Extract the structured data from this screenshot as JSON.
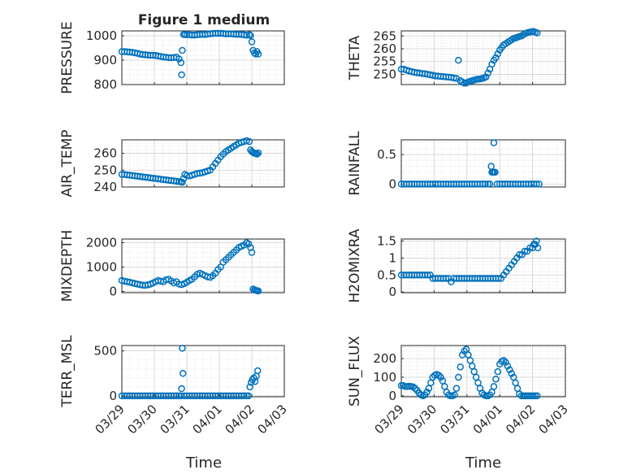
{
  "figure": {
    "title": "Figure 1 medium",
    "xlabel": "Time"
  },
  "chart_data": [
    {
      "type": "scatter",
      "ylabel": "PRESSURE",
      "ylim": [
        800,
        1020
      ],
      "yticks": [
        800,
        900,
        1000
      ],
      "xlim": [
        0,
        5
      ],
      "xticks": [
        "03/29",
        "03/30",
        "03/31",
        "04/01",
        "04/02",
        "04/03"
      ],
      "grid": true,
      "marker": "circle",
      "color": "#0072bd",
      "x": [
        0.0,
        0.08,
        0.16,
        0.24,
        0.32,
        0.4,
        0.48,
        0.56,
        0.64,
        0.72,
        0.8,
        0.88,
        0.96,
        1.04,
        1.12,
        1.2,
        1.28,
        1.36,
        1.44,
        1.52,
        1.6,
        1.68,
        1.76,
        1.82,
        1.84,
        1.86,
        1.9,
        1.94,
        2.0,
        2.08,
        2.16,
        2.24,
        2.32,
        2.4,
        2.48,
        2.56,
        2.64,
        2.72,
        2.8,
        2.88,
        2.96,
        3.04,
        3.12,
        3.2,
        3.28,
        3.36,
        3.44,
        3.52,
        3.6,
        3.68,
        3.76,
        3.84,
        3.92,
        3.96,
        4.0,
        4.04,
        4.08,
        4.12,
        4.16,
        4.2
      ],
      "y": [
        935,
        935,
        934,
        933,
        932,
        930,
        928,
        925,
        923,
        922,
        921,
        920,
        920,
        919,
        917,
        915,
        913,
        912,
        910,
        910,
        911,
        912,
        905,
        890,
        840,
        940,
        1005,
        1005,
        1004,
        1004,
        1003,
        1003,
        1004,
        1005,
        1006,
        1005,
        1007,
        1008,
        1009,
        1010,
        1010,
        1010,
        1009,
        1008,
        1008,
        1008,
        1007,
        1006,
        1006,
        1005,
        1004,
        1002,
        1005,
        1001,
        975,
        940,
        930,
        925,
        935,
        925
      ]
    },
    {
      "type": "scatter",
      "ylabel": "THETA",
      "ylim": [
        246,
        267
      ],
      "yticks": [
        250,
        255,
        260,
        265
      ],
      "xlim": [
        0,
        5
      ],
      "xticks": [
        "03/29",
        "03/30",
        "03/31",
        "04/01",
        "04/02",
        "04/03"
      ],
      "grid": true,
      "marker": "circle",
      "color": "#0072bd",
      "x": [
        0.0,
        0.08,
        0.16,
        0.24,
        0.32,
        0.4,
        0.48,
        0.56,
        0.64,
        0.72,
        0.8,
        0.88,
        0.96,
        1.04,
        1.12,
        1.2,
        1.28,
        1.36,
        1.44,
        1.52,
        1.6,
        1.68,
        1.74,
        1.8,
        1.86,
        1.92,
        1.98,
        2.04,
        2.1,
        2.16,
        2.22,
        2.28,
        2.34,
        2.4,
        2.46,
        2.52,
        2.58,
        2.64,
        2.7,
        2.76,
        2.82,
        2.88,
        2.94,
        3.0,
        3.06,
        3.12,
        3.18,
        3.24,
        3.3,
        3.36,
        3.42,
        3.48,
        3.54,
        3.6,
        3.66,
        3.72,
        3.78,
        3.84,
        3.9,
        3.96,
        4.02,
        4.08,
        4.14
      ],
      "y": [
        252,
        252,
        251.6,
        251.3,
        251,
        250.8,
        250.6,
        250.5,
        250.3,
        250.2,
        250,
        249.8,
        249.6,
        249.4,
        249.3,
        249.2,
        249.1,
        249,
        248.9,
        248.8,
        248.6,
        248.4,
        255.5,
        247.5,
        247,
        246.5,
        246.6,
        247,
        247.3,
        247.5,
        247.7,
        248,
        248.1,
        248.2,
        248.4,
        248.6,
        249,
        250.5,
        252,
        254,
        255.5,
        256.5,
        258,
        259.5,
        260.5,
        261.5,
        262,
        262.5,
        263,
        263.5,
        264,
        264.2,
        264.5,
        264.8,
        265,
        265.5,
        266,
        266.3,
        266.5,
        266.6,
        266.8,
        266.5,
        266.2
      ]
    },
    {
      "type": "scatter",
      "ylabel": "AIR_TEMP",
      "ylim": [
        240,
        268
      ],
      "yticks": [
        240,
        250,
        260
      ],
      "xlim": [
        0,
        5
      ],
      "xticks": [
        "03/29",
        "03/30",
        "03/31",
        "04/01",
        "04/02",
        "04/03"
      ],
      "grid": true,
      "marker": "circle",
      "color": "#0072bd",
      "x": [
        0.0,
        0.08,
        0.16,
        0.24,
        0.32,
        0.4,
        0.48,
        0.56,
        0.64,
        0.72,
        0.8,
        0.88,
        0.96,
        1.04,
        1.12,
        1.2,
        1.28,
        1.36,
        1.44,
        1.52,
        1.6,
        1.68,
        1.76,
        1.82,
        1.86,
        1.9,
        1.94,
        2.0,
        2.08,
        2.16,
        2.24,
        2.32,
        2.4,
        2.48,
        2.56,
        2.64,
        2.72,
        2.8,
        2.88,
        2.96,
        3.04,
        3.12,
        3.2,
        3.28,
        3.36,
        3.44,
        3.52,
        3.6,
        3.68,
        3.76,
        3.84,
        3.92,
        3.96,
        4.0,
        4.04,
        4.08,
        4.12,
        4.16,
        4.2
      ],
      "y": [
        247.5,
        247.4,
        247.2,
        247,
        246.8,
        246.6,
        246.4,
        246.2,
        246,
        245.8,
        245.6,
        245.4,
        245.2,
        245,
        244.8,
        244.6,
        244.4,
        244.2,
        244,
        243.8,
        243.6,
        243.4,
        243.2,
        243,
        242.8,
        245,
        247.5,
        246.8,
        246.5,
        247,
        247.5,
        248,
        248.2,
        248.5,
        249,
        249.5,
        250,
        252,
        254,
        256,
        258,
        259.5,
        261,
        262,
        263,
        264,
        265,
        266,
        266.5,
        267,
        267.5,
        267,
        262,
        261,
        260.5,
        260,
        260,
        259.5,
        260.2
      ]
    },
    {
      "type": "scatter",
      "ylabel": "RAINFALL",
      "ylim": [
        -0.05,
        0.75
      ],
      "yticks": [
        0,
        0.5
      ],
      "xlim": [
        0,
        5
      ],
      "xticks": [
        "03/29",
        "03/30",
        "03/31",
        "04/01",
        "04/02",
        "04/03"
      ],
      "grid": true,
      "marker": "circle",
      "color": "#0072bd",
      "x": [
        0.0,
        0.08,
        0.16,
        0.24,
        0.32,
        0.4,
        0.48,
        0.56,
        0.64,
        0.72,
        0.8,
        0.88,
        0.96,
        1.04,
        1.12,
        1.2,
        1.28,
        1.36,
        1.44,
        1.52,
        1.6,
        1.68,
        1.76,
        1.84,
        1.92,
        2.0,
        2.08,
        2.16,
        2.24,
        2.32,
        2.4,
        2.48,
        2.56,
        2.64,
        2.7,
        2.74,
        2.76,
        2.78,
        2.8,
        2.82,
        2.84,
        2.86,
        2.92,
        3.0,
        3.08,
        3.16,
        3.24,
        3.32,
        3.4,
        3.48,
        3.56,
        3.64,
        3.72,
        3.8,
        3.88,
        3.96,
        4.04,
        4.12,
        4.2
      ],
      "y": [
        0,
        0,
        0,
        0,
        0,
        0,
        0,
        0,
        0,
        0,
        0,
        0,
        0,
        0,
        0,
        0,
        0,
        0,
        0,
        0,
        0,
        0,
        0,
        0,
        0,
        0,
        0,
        0,
        0,
        0,
        0,
        0,
        0,
        0,
        0,
        0.3,
        0.2,
        0.2,
        0.2,
        0.7,
        0.2,
        0.2,
        0,
        0,
        0,
        0,
        0,
        0,
        0,
        0,
        0,
        0,
        0,
        0,
        0,
        0,
        0,
        0,
        0
      ]
    },
    {
      "type": "scatter",
      "ylabel": "MIXDEPTH",
      "ylim": [
        -50,
        2150
      ],
      "yticks": [
        0,
        1000,
        2000
      ],
      "xlim": [
        0,
        5
      ],
      "xticks": [
        "03/29",
        "03/30",
        "03/31",
        "04/01",
        "04/02",
        "04/03"
      ],
      "grid": true,
      "marker": "circle",
      "color": "#0072bd",
      "x": [
        0.0,
        0.08,
        0.16,
        0.24,
        0.32,
        0.4,
        0.48,
        0.56,
        0.64,
        0.72,
        0.8,
        0.88,
        0.96,
        1.04,
        1.12,
        1.2,
        1.28,
        1.36,
        1.44,
        1.52,
        1.6,
        1.68,
        1.76,
        1.84,
        1.92,
        2.0,
        2.08,
        2.16,
        2.24,
        2.32,
        2.4,
        2.48,
        2.56,
        2.64,
        2.72,
        2.8,
        2.88,
        2.96,
        3.04,
        3.12,
        3.2,
        3.28,
        3.36,
        3.44,
        3.52,
        3.6,
        3.68,
        3.76,
        3.84,
        3.9,
        3.96,
        4.0,
        4.04,
        4.08,
        4.12,
        4.16,
        4.2
      ],
      "y": [
        450,
        420,
        400,
        380,
        350,
        330,
        300,
        280,
        260,
        250,
        270,
        300,
        350,
        400,
        450,
        420,
        400,
        480,
        500,
        430,
        350,
        400,
        300,
        280,
        320,
        380,
        450,
        500,
        600,
        700,
        750,
        700,
        650,
        600,
        580,
        650,
        750,
        900,
        1000,
        1200,
        1300,
        1400,
        1500,
        1600,
        1700,
        1800,
        1850,
        1900,
        2000,
        1950,
        1800,
        1600,
        100,
        60,
        50,
        30,
        20
      ]
    },
    {
      "type": "scatter",
      "ylabel": "H2OMIXRA",
      "ylim": [
        -0.02,
        1.56
      ],
      "yticks": [
        0,
        0.5,
        1,
        1.5
      ],
      "xlim": [
        0,
        5
      ],
      "xticks": [
        "03/29",
        "03/30",
        "03/31",
        "04/01",
        "04/02",
        "04/03"
      ],
      "grid": true,
      "marker": "circle",
      "color": "#0072bd",
      "x": [
        0.0,
        0.08,
        0.16,
        0.24,
        0.32,
        0.4,
        0.48,
        0.56,
        0.64,
        0.72,
        0.8,
        0.88,
        0.96,
        1.04,
        1.12,
        1.2,
        1.28,
        1.36,
        1.44,
        1.52,
        1.6,
        1.68,
        1.76,
        1.84,
        1.92,
        2.0,
        2.08,
        2.16,
        2.24,
        2.32,
        2.4,
        2.48,
        2.56,
        2.64,
        2.72,
        2.8,
        2.88,
        2.96,
        3.04,
        3.12,
        3.2,
        3.28,
        3.36,
        3.44,
        3.52,
        3.6,
        3.68,
        3.76,
        3.84,
        3.92,
        4.0,
        4.04,
        4.08,
        4.12,
        4.16
      ],
      "y": [
        0.5,
        0.5,
        0.5,
        0.5,
        0.5,
        0.5,
        0.5,
        0.5,
        0.5,
        0.5,
        0.5,
        0.5,
        0.4,
        0.4,
        0.4,
        0.4,
        0.4,
        0.4,
        0.4,
        0.3,
        0.4,
        0.4,
        0.4,
        0.4,
        0.4,
        0.4,
        0.4,
        0.4,
        0.4,
        0.4,
        0.4,
        0.4,
        0.4,
        0.4,
        0.4,
        0.4,
        0.4,
        0.4,
        0.4,
        0.5,
        0.6,
        0.7,
        0.8,
        0.9,
        1.0,
        1.1,
        1.1,
        1.2,
        1.2,
        1.3,
        1.3,
        1.4,
        1.4,
        1.5,
        1.3
      ]
    },
    {
      "type": "scatter",
      "ylabel": "TERR_MSL",
      "ylim": [
        -10,
        560
      ],
      "yticks": [
        0,
        500
      ],
      "xlim": [
        0,
        5
      ],
      "xticks": [
        "03/29",
        "03/30",
        "03/31",
        "04/01",
        "04/02",
        "04/03"
      ],
      "grid": true,
      "marker": "circle",
      "color": "#0072bd",
      "x": [
        0.0,
        0.08,
        0.16,
        0.24,
        0.32,
        0.4,
        0.48,
        0.56,
        0.64,
        0.72,
        0.8,
        0.88,
        0.96,
        1.04,
        1.12,
        1.2,
        1.28,
        1.36,
        1.44,
        1.52,
        1.6,
        1.68,
        1.76,
        1.82,
        1.84,
        1.86,
        1.88,
        1.92,
        2.0,
        2.08,
        2.16,
        2.24,
        2.32,
        2.4,
        2.48,
        2.56,
        2.64,
        2.72,
        2.8,
        2.88,
        2.96,
        3.04,
        3.12,
        3.2,
        3.28,
        3.36,
        3.44,
        3.52,
        3.6,
        3.68,
        3.76,
        3.84,
        3.9,
        3.94,
        3.98,
        4.02,
        4.06,
        4.1,
        4.14,
        4.18
      ],
      "y": [
        0,
        0,
        0,
        0,
        0,
        0,
        0,
        0,
        0,
        0,
        0,
        0,
        0,
        0,
        0,
        0,
        0,
        0,
        0,
        0,
        0,
        0,
        0,
        0,
        80,
        530,
        250,
        0,
        0,
        0,
        0,
        0,
        0,
        0,
        0,
        0,
        0,
        0,
        0,
        0,
        0,
        0,
        0,
        0,
        0,
        0,
        0,
        0,
        0,
        0,
        0,
        0,
        0,
        100,
        150,
        180,
        200,
        160,
        220,
        280
      ]
    },
    {
      "type": "scatter",
      "ylabel": "SUN_FLUX",
      "ylim": [
        -5,
        270
      ],
      "yticks": [
        0,
        100,
        200
      ],
      "xlim": [
        0,
        5
      ],
      "xticks": [
        "03/29",
        "03/30",
        "03/31",
        "04/01",
        "04/02",
        "04/03"
      ],
      "grid": true,
      "marker": "circle",
      "color": "#0072bd",
      "x": [
        0.0,
        0.06,
        0.12,
        0.18,
        0.24,
        0.3,
        0.36,
        0.42,
        0.48,
        0.54,
        0.6,
        0.66,
        0.72,
        0.78,
        0.84,
        0.9,
        0.96,
        1.02,
        1.08,
        1.14,
        1.2,
        1.26,
        1.32,
        1.38,
        1.44,
        1.5,
        1.56,
        1.62,
        1.68,
        1.74,
        1.8,
        1.86,
        1.92,
        1.98,
        2.04,
        2.1,
        2.16,
        2.22,
        2.28,
        2.34,
        2.4,
        2.46,
        2.52,
        2.58,
        2.64,
        2.7,
        2.76,
        2.82,
        2.88,
        2.94,
        3.0,
        3.06,
        3.12,
        3.18,
        3.24,
        3.3,
        3.36,
        3.42,
        3.48,
        3.54,
        3.6,
        3.66,
        3.72,
        3.78,
        3.84,
        3.9,
        3.96,
        4.02,
        4.08,
        4.14
      ],
      "y": [
        55,
        55,
        50,
        50,
        52,
        50,
        48,
        40,
        30,
        15,
        5,
        0,
        5,
        20,
        40,
        70,
        100,
        110,
        115,
        110,
        100,
        80,
        50,
        20,
        5,
        0,
        0,
        5,
        40,
        100,
        155,
        220,
        240,
        250,
        220,
        190,
        160,
        130,
        100,
        70,
        40,
        15,
        5,
        0,
        0,
        5,
        20,
        50,
        90,
        130,
        170,
        185,
        190,
        180,
        160,
        140,
        120,
        100,
        70,
        40,
        10,
        0,
        0,
        0,
        0,
        0,
        0,
        0,
        0,
        0
      ]
    }
  ]
}
